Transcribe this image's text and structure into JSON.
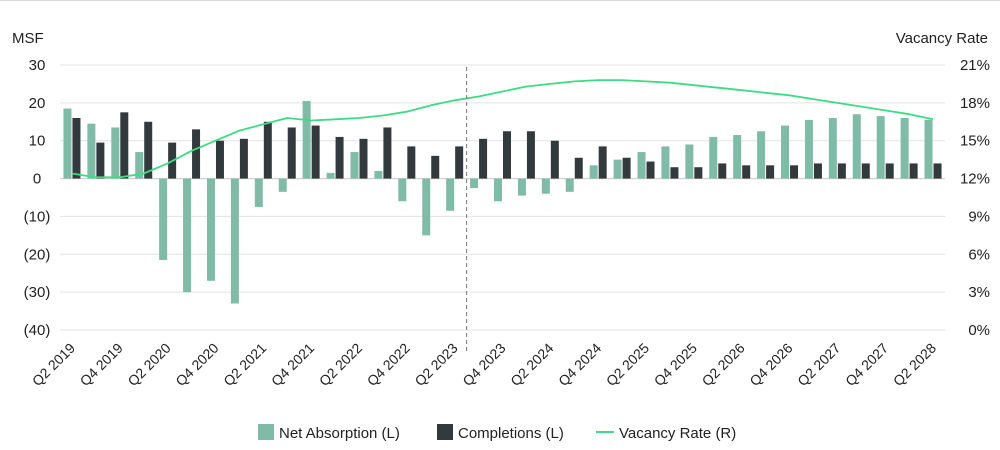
{
  "chart_data": {
    "type": "bar+line",
    "left_axis_label": "MSF",
    "right_axis_label": "Vacancy Rate",
    "left_ticks": [
      "30",
      "20",
      "10",
      "0",
      "(10)",
      "(20)",
      "(30)",
      "(40)"
    ],
    "right_ticks": [
      "21%",
      "18%",
      "15%",
      "12%",
      "9%",
      "6%",
      "3%",
      "0%"
    ],
    "ylim_left": [
      -40,
      30
    ],
    "ylim_right": [
      0,
      21
    ],
    "x_tick_labels": [
      "Q2 2019",
      "Q4 2019",
      "Q2 2020",
      "Q4 2020",
      "Q2 2021",
      "Q4 2021",
      "Q2 2022",
      "Q4 2022",
      "Q2 2023",
      "Q4 2023",
      "Q2 2024",
      "Q4 2024",
      "Q2 2025",
      "Q4 2025",
      "Q2 2026",
      "Q4 2026",
      "Q2 2027",
      "Q4 2027",
      "Q2 2028"
    ],
    "forecast_divider_after_index": 16,
    "colors": {
      "absorption": "#80bba7",
      "completions": "#333a3d",
      "vacancy": "#3ddc84",
      "grid": "#e3e3e3",
      "divider": "#777777",
      "text": "#222222"
    },
    "series": [
      {
        "name": "Net Absorption (L)",
        "axis": "left",
        "kind": "bar",
        "values": [
          18.5,
          14.5,
          13.5,
          7,
          -21.5,
          -30,
          -27,
          -33,
          -7.5,
          -3.5,
          20.5,
          1.5,
          7,
          2,
          -6,
          -15,
          -8.5,
          -2.5,
          -6,
          -4.5,
          -4,
          -3.5,
          3.5,
          5,
          7,
          8.5,
          9,
          11,
          11.5,
          12.5,
          14,
          15.5,
          16,
          17,
          16.5,
          16,
          15.5
        ]
      },
      {
        "name": "Completions (L)",
        "axis": "left",
        "kind": "bar",
        "values": [
          16,
          9.5,
          17.5,
          15,
          9.5,
          13,
          10,
          10.5,
          15,
          13.5,
          14,
          11,
          10.5,
          13.5,
          8.5,
          6,
          8.5,
          10.5,
          12.5,
          12.5,
          10,
          5.5,
          8.5,
          5.5,
          4.5,
          3,
          3,
          4,
          3.5,
          3.5,
          3.5,
          4,
          4,
          4,
          4,
          4,
          4
        ]
      },
      {
        "name": "Vacancy Rate (R)",
        "axis": "right",
        "kind": "line",
        "values": [
          12.4,
          12.1,
          12.1,
          12.4,
          13.2,
          14.2,
          15,
          15.8,
          16.3,
          16.8,
          16.6,
          16.7,
          16.8,
          17,
          17.3,
          17.8,
          18.2,
          18.5,
          18.9,
          19.3,
          19.5,
          19.7,
          19.8,
          19.8,
          19.7,
          19.6,
          19.4,
          19.2,
          19,
          18.8,
          18.6,
          18.3,
          18,
          17.7,
          17.4,
          17.1,
          16.7
        ]
      }
    ]
  }
}
